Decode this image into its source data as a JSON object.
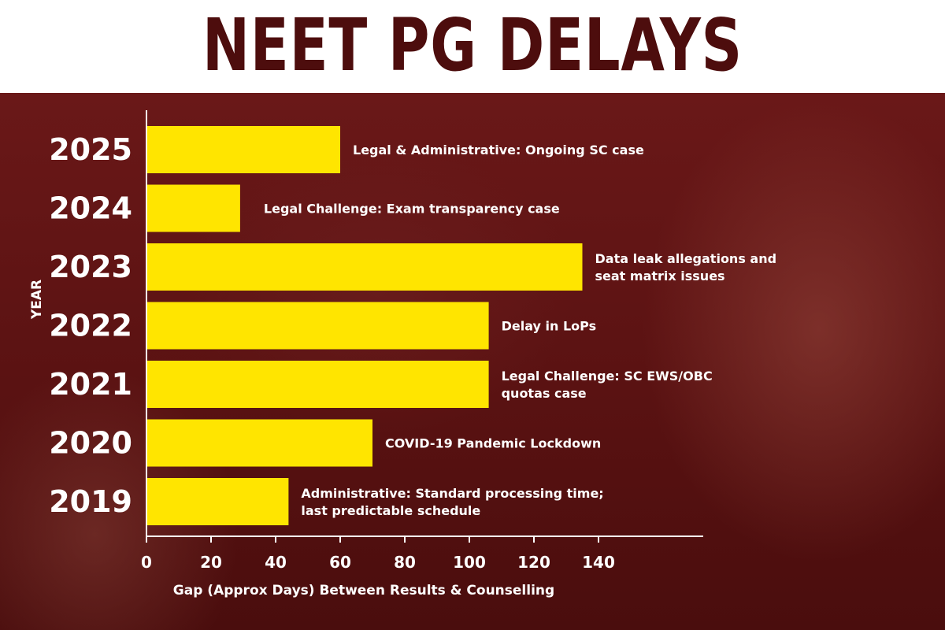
{
  "header": {
    "title": "NEET PG DELAYS"
  },
  "chart_data": {
    "type": "bar",
    "orientation": "horizontal",
    "title": "NEET PG DELAYS",
    "xlabel": "Gap (Approx Days) Between Results & Counselling",
    "ylabel": "YEAR",
    "xlim": [
      0,
      170
    ],
    "xticks": [
      0,
      20,
      40,
      60,
      80,
      100,
      120,
      140
    ],
    "grid": false,
    "categories": [
      "2025",
      "2024",
      "2023",
      "2022",
      "2021",
      "2020",
      "2019"
    ],
    "values": [
      60,
      29,
      135,
      106,
      106,
      70,
      44
    ],
    "bar_color": "#ffe500",
    "annotations": [
      [
        "Legal & Administrative: Ongoing SC case"
      ],
      [
        "Legal Challenge: Exam transparency case"
      ],
      [
        "Data leak allegations and",
        "seat matrix issues"
      ],
      [
        "Delay in LoPs"
      ],
      [
        "Legal Challenge: SC EWS/OBC",
        "quotas case"
      ],
      [
        "COVID-19 Pandemic Lockdown"
      ],
      [
        "Administrative: Standard processing time;",
        "last predictable schedule"
      ]
    ]
  }
}
